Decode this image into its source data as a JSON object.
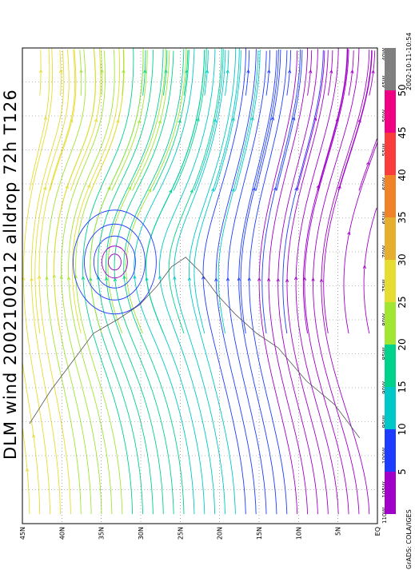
{
  "title": "DLM wind 2002100212 alldrop 72h T126",
  "timestamp": "2002-10-11-10:54",
  "credit": "GrADS: COLA/IGES",
  "lat_labels": [
    "45N",
    "40N",
    "35N",
    "30N",
    "25N",
    "20N",
    "15N",
    "10N",
    "5N",
    "EQ"
  ],
  "lon_labels": [
    "110W",
    "105W",
    "100W",
    "95W",
    "90W",
    "85W",
    "80W",
    "75W",
    "70W",
    "65W",
    "60W",
    "55W",
    "50W",
    "45W",
    "40W"
  ],
  "colorbar": {
    "labels": [
      "5",
      "10",
      "15",
      "20",
      "25",
      "30",
      "35",
      "40",
      "45",
      "50"
    ],
    "colors": [
      "#a000c8",
      "#1e3cff",
      "#00c8c8",
      "#00d28c",
      "#a0e632",
      "#e6dc32",
      "#e6af2d",
      "#f08228",
      "#fa3c3c",
      "#f00082",
      "#808080"
    ]
  },
  "colors": {
    "grid": "#777777",
    "coast": "#555555"
  }
}
